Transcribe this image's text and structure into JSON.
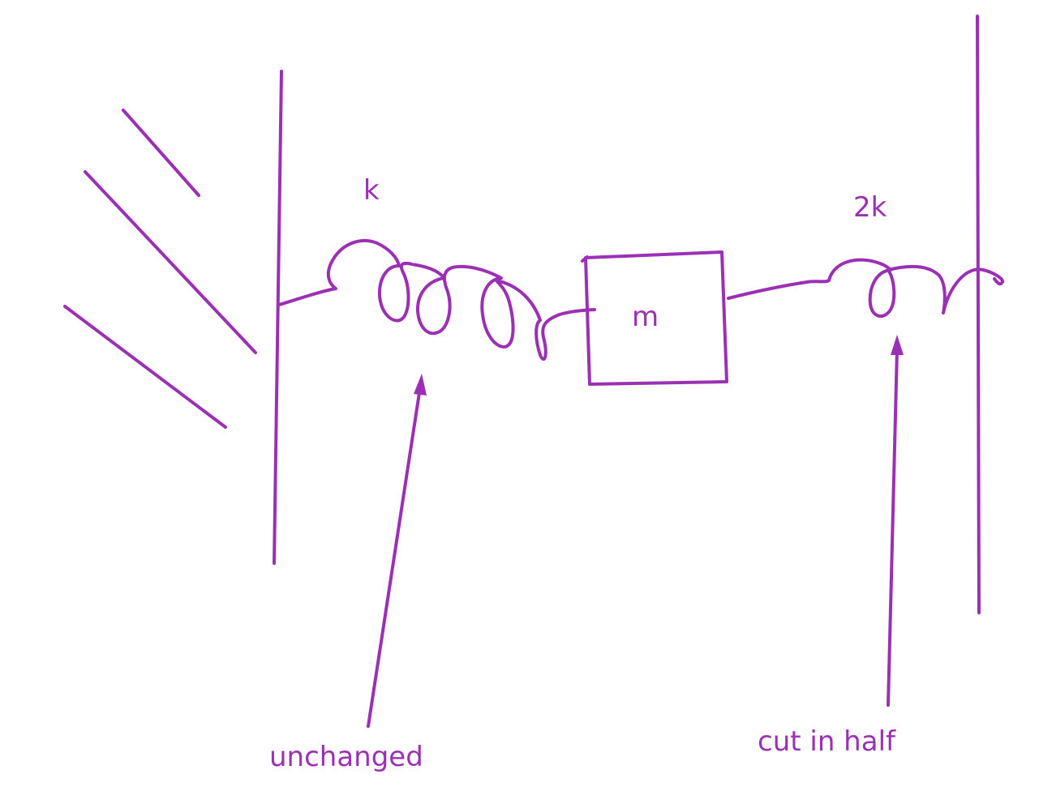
{
  "colors": {
    "ink": "#9b30b5",
    "background": "#ffffff"
  },
  "labels": {
    "left_spring_constant": "k",
    "right_spring_constant": "2k",
    "mass": "m",
    "left_spring_note": "unchanged",
    "right_spring_note": "cut in half"
  }
}
